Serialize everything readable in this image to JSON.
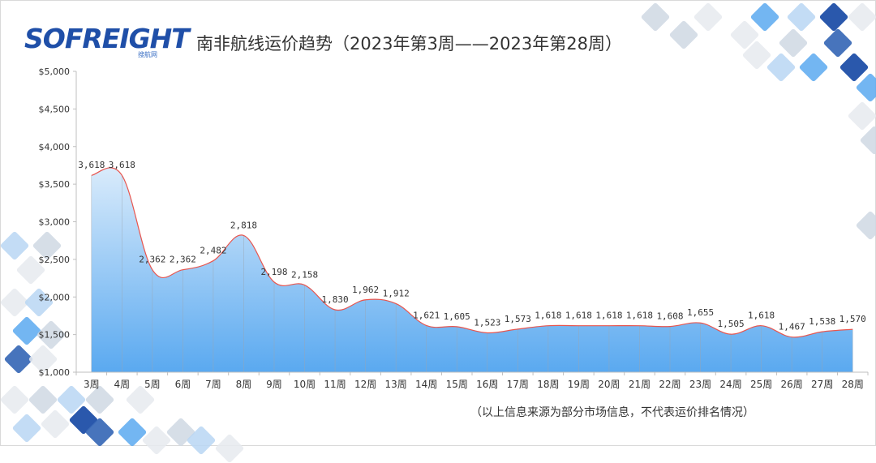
{
  "logo": {
    "text": "SOFREIGHT",
    "sub": "搜航网"
  },
  "title": "南非航线运价趋势（2023年第3周——2023年第28周）",
  "footnote": "（以上信息来源为部分市场信息，不代表运价排名情况）",
  "colors": {
    "line": "#e8564f",
    "area_top": "#d9ebfb",
    "area_bottom": "#5aa9f0",
    "axis": "#bfbfbf",
    "label": "#333333",
    "tiles": [
      "#1f4fa8",
      "#5aa9f0",
      "#b8d6f3",
      "#cfd8e3",
      "#e6eaef",
      "#3d6db8"
    ]
  },
  "chart_data": {
    "type": "area",
    "title": "",
    "xlabel": "",
    "ylabel": "",
    "ylim": [
      1000,
      5000
    ],
    "yticks": [
      "$1,000",
      "$1,500",
      "$2,000",
      "$2,500",
      "$3,000",
      "$3,500",
      "$4,000",
      "$4,500",
      "$5,000"
    ],
    "ytick_values": [
      1000,
      1500,
      2000,
      2500,
      3000,
      3500,
      4000,
      4500,
      5000
    ],
    "categories": [
      "3周",
      "4周",
      "5周",
      "6周",
      "7周",
      "8周",
      "9周",
      "10周",
      "11周",
      "12周",
      "13周",
      "14周",
      "15周",
      "16周",
      "17周",
      "18周",
      "19周",
      "20周",
      "21周",
      "22周",
      "23周",
      "24周",
      "25周",
      "26周",
      "27周",
      "28周"
    ],
    "values": [
      3618,
      3618,
      2362,
      2362,
      2482,
      2818,
      2198,
      2158,
      1830,
      1962,
      1912,
      1621,
      1605,
      1523,
      1573,
      1618,
      1618,
      1618,
      1618,
      1608,
      1655,
      1505,
      1618,
      1467,
      1538,
      1570
    ],
    "data_labels": [
      "3,618",
      "3,618",
      "2,362",
      "2,362",
      "2,482",
      "2,818",
      "2,198",
      "2,158",
      "1,830",
      "1,962",
      "1,912",
      "1,621",
      "1,605",
      "1,523",
      "1,573",
      "1,618",
      "1,618",
      "1,618",
      "1,618",
      "1,608",
      "1,655",
      "1,505",
      "1,618",
      "1,467",
      "1,538",
      "1,570"
    ],
    "grid": false,
    "legend": "none"
  }
}
